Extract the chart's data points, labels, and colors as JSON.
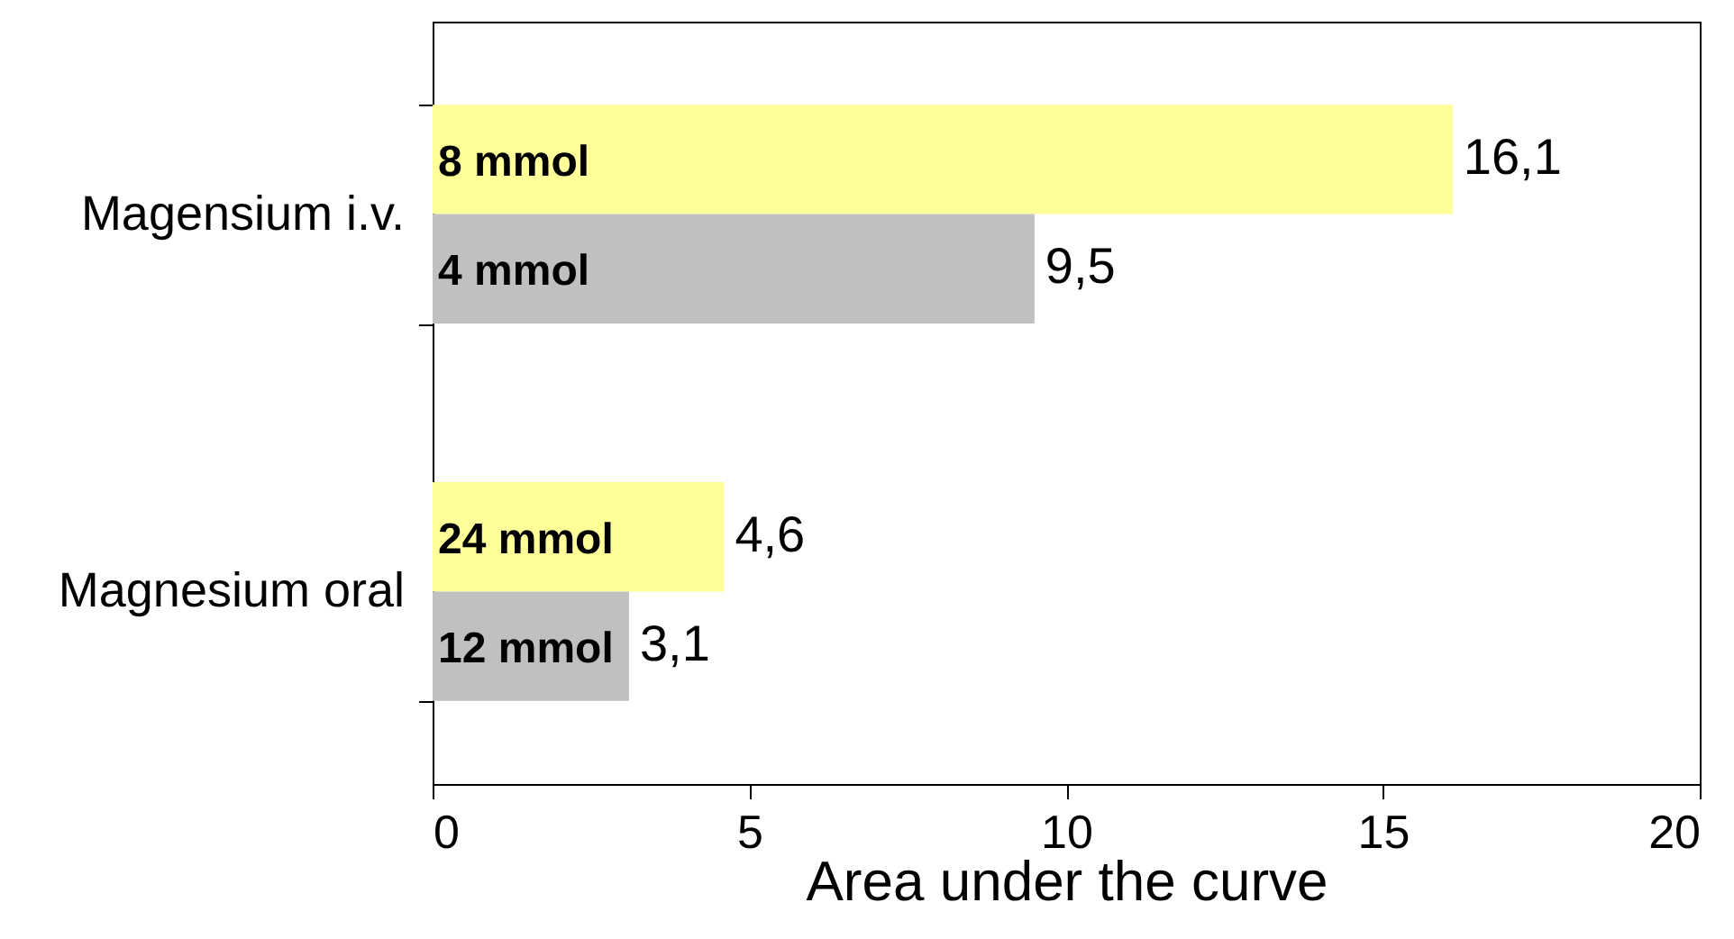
{
  "chart_data": {
    "type": "bar",
    "orientation": "horizontal",
    "categories": [
      "Magensium i.v.",
      "Magnesium oral"
    ],
    "series": [
      {
        "color": "#ffff99",
        "values": [
          16.1,
          4.6
        ],
        "value_labels": [
          "16,1",
          "4,6"
        ]
      },
      {
        "color": "#c0c0c0",
        "values": [
          9.5,
          3.1
        ],
        "value_labels": [
          "9,5",
          "3,1"
        ]
      }
    ],
    "xlabel": "Area under the curve",
    "xlim": [
      0,
      20
    ],
    "xticks": [
      0,
      5,
      10,
      15,
      20
    ],
    "grid": false,
    "annotations": [
      "8 mmol",
      "4 mmol",
      "24 mmol",
      "12 mmol"
    ]
  }
}
